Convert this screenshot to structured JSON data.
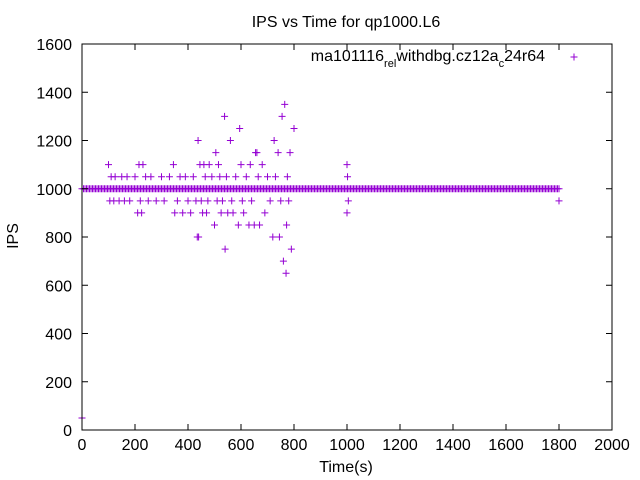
{
  "chart_data": {
    "type": "scatter",
    "title": "IPS vs Time for qp1000.L6",
    "xlabel": "Time(s)",
    "ylabel": "IPS",
    "xlim": [
      0,
      2000
    ],
    "ylim": [
      0,
      1600
    ],
    "xticks": [
      0,
      200,
      400,
      600,
      800,
      1000,
      1200,
      1400,
      1600,
      1800,
      2000
    ],
    "yticks": [
      0,
      200,
      400,
      600,
      800,
      1000,
      1200,
      1400,
      1600
    ],
    "grid": false,
    "legend_position": "top-right",
    "colors": {
      "series": "#9400d3",
      "axis": "#000000"
    },
    "series": [
      {
        "name": "ma101116_rel_withdbg.cz12a_c24r64",
        "legend_parts": [
          {
            "text": "ma101116",
            "shift": "normal"
          },
          {
            "text": "rel",
            "shift": "sub"
          },
          {
            "text": "withdbg.cz12a",
            "shift": "normal"
          },
          {
            "text": "c",
            "shift": "sub"
          },
          {
            "text": "24r64",
            "shift": "normal"
          }
        ],
        "dense_band": {
          "y": 1000,
          "x_from": 0,
          "x_to": 1800
        },
        "points": [
          [
            0,
            50
          ],
          [
            100,
            1100
          ],
          [
            105,
            950
          ],
          [
            110,
            1050
          ],
          [
            120,
            950
          ],
          [
            125,
            1050
          ],
          [
            140,
            950
          ],
          [
            150,
            1050
          ],
          [
            160,
            950
          ],
          [
            170,
            1050
          ],
          [
            180,
            950
          ],
          [
            200,
            1050
          ],
          [
            210,
            900
          ],
          [
            215,
            1100
          ],
          [
            220,
            950
          ],
          [
            225,
            900
          ],
          [
            230,
            1100
          ],
          [
            240,
            1050
          ],
          [
            250,
            950
          ],
          [
            260,
            1050
          ],
          [
            280,
            950
          ],
          [
            300,
            1050
          ],
          [
            310,
            950
          ],
          [
            330,
            1050
          ],
          [
            345,
            1100
          ],
          [
            350,
            900
          ],
          [
            360,
            950
          ],
          [
            370,
            1050
          ],
          [
            380,
            900
          ],
          [
            390,
            1050
          ],
          [
            400,
            950
          ],
          [
            410,
            900
          ],
          [
            420,
            1050
          ],
          [
            430,
            950
          ],
          [
            435,
            800
          ],
          [
            438,
            1200
          ],
          [
            440,
            800
          ],
          [
            445,
            1100
          ],
          [
            450,
            950
          ],
          [
            455,
            900
          ],
          [
            460,
            1100
          ],
          [
            465,
            1050
          ],
          [
            470,
            900
          ],
          [
            475,
            950
          ],
          [
            480,
            1100
          ],
          [
            490,
            1050
          ],
          [
            500,
            850
          ],
          [
            505,
            1150
          ],
          [
            510,
            950
          ],
          [
            515,
            1100
          ],
          [
            520,
            1050
          ],
          [
            525,
            900
          ],
          [
            530,
            950
          ],
          [
            538,
            1300
          ],
          [
            540,
            750
          ],
          [
            545,
            1050
          ],
          [
            550,
            900
          ],
          [
            560,
            1200
          ],
          [
            565,
            950
          ],
          [
            570,
            900
          ],
          [
            580,
            1050
          ],
          [
            590,
            850
          ],
          [
            595,
            1250
          ],
          [
            600,
            1100
          ],
          [
            605,
            950
          ],
          [
            610,
            900
          ],
          [
            620,
            1050
          ],
          [
            630,
            850
          ],
          [
            635,
            1100
          ],
          [
            640,
            950
          ],
          [
            650,
            850
          ],
          [
            655,
            1150
          ],
          [
            660,
            1150
          ],
          [
            665,
            1050
          ],
          [
            670,
            850
          ],
          [
            680,
            1100
          ],
          [
            690,
            900
          ],
          [
            700,
            1050
          ],
          [
            710,
            950
          ],
          [
            720,
            800
          ],
          [
            725,
            1200
          ],
          [
            730,
            1050
          ],
          [
            740,
            1150
          ],
          [
            745,
            800
          ],
          [
            750,
            950
          ],
          [
            755,
            1300
          ],
          [
            760,
            700
          ],
          [
            765,
            1350
          ],
          [
            770,
            650
          ],
          [
            772,
            850
          ],
          [
            775,
            1050
          ],
          [
            780,
            950
          ],
          [
            785,
            1150
          ],
          [
            790,
            750
          ],
          [
            800,
            1250
          ],
          [
            1000,
            1100
          ],
          [
            1000,
            900
          ],
          [
            1002,
            1050
          ],
          [
            1005,
            950
          ],
          [
            1800,
            950
          ]
        ]
      }
    ]
  }
}
